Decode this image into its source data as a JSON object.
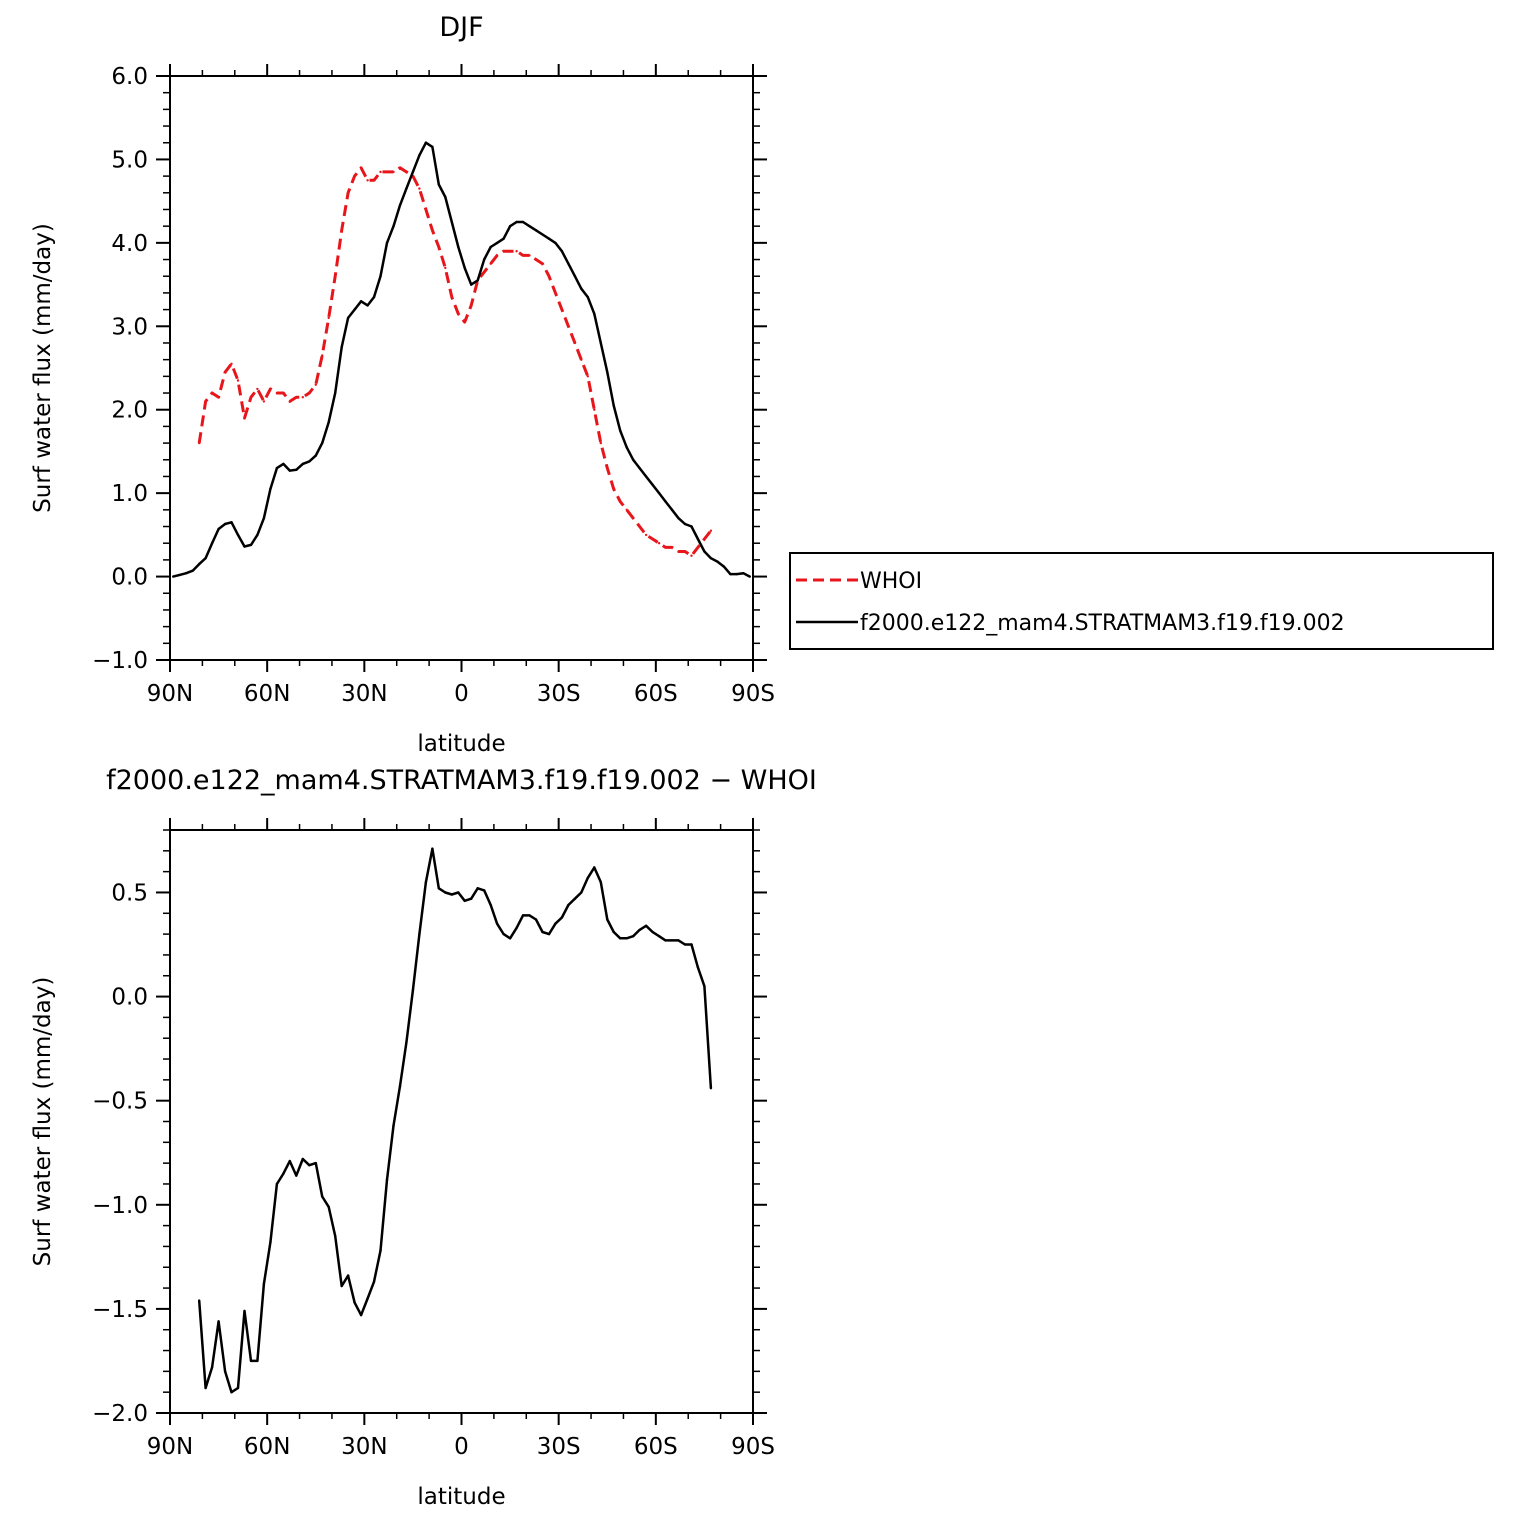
{
  "chart_data": [
    {
      "type": "line",
      "title": "DJF",
      "xlabel": "latitude",
      "ylabel": "Surf water flux (mm/day)",
      "xlim": [
        90,
        -90
      ],
      "ylim": [
        -1.0,
        6.0
      ],
      "xticks": [
        90,
        60,
        30,
        0,
        -30,
        -60,
        -90
      ],
      "xtick_labels": [
        "90N",
        "60N",
        "30N",
        "0",
        "30S",
        "60S",
        "90S"
      ],
      "yticks": [
        -1,
        0,
        1,
        2,
        3,
        4,
        5,
        6
      ],
      "ytick_labels": [
        "−1.0",
        "0.0",
        "1.0",
        "2.0",
        "3.0",
        "4.0",
        "5.0",
        "6.0"
      ],
      "legend": "right",
      "series": [
        {
          "name": "WHOI",
          "color": "#e8161b",
          "dash": true,
          "x": [
            81,
            79,
            77,
            75,
            73,
            71,
            69,
            67,
            65,
            63,
            61,
            59,
            57,
            55,
            53,
            51,
            49,
            47,
            45,
            43,
            41,
            39,
            37,
            35,
            33,
            31,
            29,
            27,
            25,
            23,
            21,
            19,
            17,
            15,
            13,
            11,
            9,
            7,
            5,
            3,
            1,
            -1,
            -3,
            -5,
            -7,
            -9,
            -11,
            -13,
            -15,
            -17,
            -19,
            -21,
            -23,
            -25,
            -27,
            -29,
            -31,
            -33,
            -35,
            -37,
            -39,
            -41,
            -43,
            -45,
            -47,
            -49,
            -51,
            -53,
            -55,
            -57,
            -59,
            -61,
            -63,
            -65,
            -67,
            -69,
            -71,
            -73,
            -75,
            -77
          ],
          "y": [
            1.6,
            2.1,
            2.2,
            2.15,
            2.45,
            2.55,
            2.35,
            1.9,
            2.15,
            2.25,
            2.1,
            2.25,
            2.2,
            2.2,
            2.1,
            2.15,
            2.15,
            2.2,
            2.3,
            2.65,
            3.1,
            3.6,
            4.15,
            4.6,
            4.8,
            4.9,
            4.75,
            4.75,
            4.85,
            4.85,
            4.85,
            4.9,
            4.85,
            4.8,
            4.65,
            4.4,
            4.15,
            3.95,
            3.7,
            3.35,
            3.15,
            3.05,
            3.25,
            3.55,
            3.65,
            3.75,
            3.85,
            3.9,
            3.9,
            3.9,
            3.85,
            3.85,
            3.8,
            3.75,
            3.6,
            3.4,
            3.2,
            3.0,
            2.8,
            2.6,
            2.4,
            2.0,
            1.6,
            1.3,
            1.05,
            0.9,
            0.8,
            0.7,
            0.6,
            0.5,
            0.45,
            0.4,
            0.35,
            0.35,
            0.3,
            0.3,
            0.25,
            0.35,
            0.45,
            0.55
          ]
        },
        {
          "name": "f2000.e122_mam4.STRATMAM3.f19.f19.002",
          "color": "#000000",
          "dash": false,
          "x": [
            89,
            87,
            85,
            83,
            81,
            79,
            77,
            75,
            73,
            71,
            69,
            67,
            65,
            63,
            61,
            59,
            57,
            55,
            53,
            51,
            49,
            47,
            45,
            43,
            41,
            39,
            37,
            35,
            33,
            31,
            29,
            27,
            25,
            23,
            21,
            19,
            17,
            15,
            13,
            11,
            9,
            7,
            5,
            3,
            1,
            -1,
            -3,
            -5,
            -7,
            -9,
            -11,
            -13,
            -15,
            -17,
            -19,
            -21,
            -23,
            -25,
            -27,
            -29,
            -31,
            -33,
            -35,
            -37,
            -39,
            -41,
            -43,
            -45,
            -47,
            -49,
            -51,
            -53,
            -55,
            -57,
            -59,
            -61,
            -63,
            -65,
            -67,
            -69,
            -71,
            -73,
            -75,
            -77,
            -79,
            -81,
            -83,
            -85,
            -87,
            -89
          ],
          "y": [
            0.0,
            0.02,
            0.04,
            0.07,
            0.15,
            0.22,
            0.4,
            0.57,
            0.63,
            0.65,
            0.5,
            0.36,
            0.38,
            0.5,
            0.7,
            1.05,
            1.3,
            1.35,
            1.27,
            1.28,
            1.35,
            1.38,
            1.45,
            1.6,
            1.85,
            2.2,
            2.75,
            3.1,
            3.2,
            3.3,
            3.25,
            3.35,
            3.6,
            4.0,
            4.2,
            4.45,
            4.65,
            4.85,
            5.05,
            5.2,
            5.15,
            4.7,
            4.55,
            4.25,
            3.95,
            3.7,
            3.5,
            3.55,
            3.8,
            3.95,
            4.0,
            4.05,
            4.2,
            4.25,
            4.25,
            4.2,
            4.15,
            4.1,
            4.05,
            4.0,
            3.9,
            3.75,
            3.6,
            3.45,
            3.35,
            3.15,
            2.8,
            2.45,
            2.05,
            1.75,
            1.55,
            1.4,
            1.3,
            1.2,
            1.1,
            1.0,
            0.9,
            0.8,
            0.7,
            0.63,
            0.6,
            0.45,
            0.3,
            0.22,
            0.18,
            0.12,
            0.03,
            0.03,
            0.04,
            0.0
          ]
        }
      ]
    },
    {
      "type": "line",
      "title": "f2000.e122_mam4.STRATMAM3.f19.f19.002 − WHOI",
      "xlabel": "latitude",
      "ylabel": "Surf water flux (mm/day)",
      "xlim": [
        90,
        -90
      ],
      "ylim": [
        -2.0,
        0.8
      ],
      "xticks": [
        90,
        60,
        30,
        0,
        -30,
        -60,
        -90
      ],
      "xtick_labels": [
        "90N",
        "60N",
        "30N",
        "0",
        "30S",
        "60S",
        "90S"
      ],
      "yticks": [
        -2.0,
        -1.5,
        -1.0,
        -0.5,
        0.0,
        0.5
      ],
      "ytick_labels": [
        "−2.0",
        "−1.5",
        "−1.0",
        "−0.5",
        "0.0",
        "0.5"
      ],
      "series": [
        {
          "color": "#000000",
          "x": [
            81,
            79,
            77,
            75,
            73,
            71,
            69,
            67,
            65,
            63,
            61,
            59,
            57,
            55,
            53,
            51,
            49,
            47,
            45,
            43,
            41,
            39,
            37,
            35,
            33,
            31,
            29,
            27,
            25,
            23,
            21,
            19,
            17,
            15,
            13,
            11,
            9,
            7,
            5,
            3,
            1,
            -1,
            -3,
            -5,
            -7,
            -9,
            -11,
            -13,
            -15,
            -17,
            -19,
            -21,
            -23,
            -25,
            -27,
            -29,
            -31,
            -33,
            -35,
            -37,
            -39,
            -41,
            -43,
            -45,
            -47,
            -49,
            -51,
            -53,
            -55,
            -57,
            -59,
            -61,
            -63,
            -65,
            -67,
            -69,
            -71,
            -73,
            -75,
            -77
          ],
          "y": [
            -1.46,
            -1.88,
            -1.78,
            -1.56,
            -1.8,
            -1.9,
            -1.88,
            -1.51,
            -1.75,
            -1.75,
            -1.38,
            -1.18,
            -0.9,
            -0.85,
            -0.79,
            -0.86,
            -0.78,
            -0.81,
            -0.8,
            -0.96,
            -1.01,
            -1.15,
            -1.39,
            -1.34,
            -1.47,
            -1.53,
            -1.45,
            -1.37,
            -1.22,
            -0.88,
            -0.62,
            -0.43,
            -0.22,
            0.03,
            0.3,
            0.55,
            0.71,
            0.52,
            0.5,
            0.49,
            0.5,
            0.46,
            0.47,
            0.52,
            0.51,
            0.44,
            0.35,
            0.3,
            0.28,
            0.33,
            0.39,
            0.39,
            0.37,
            0.31,
            0.3,
            0.35,
            0.38,
            0.44,
            0.47,
            0.5,
            0.57,
            0.62,
            0.55,
            0.37,
            0.31,
            0.28,
            0.28,
            0.29,
            0.32,
            0.34,
            0.31,
            0.29,
            0.27,
            0.27,
            0.27,
            0.25,
            0.25,
            0.14,
            0.05,
            -0.44
          ]
        }
      ]
    }
  ]
}
